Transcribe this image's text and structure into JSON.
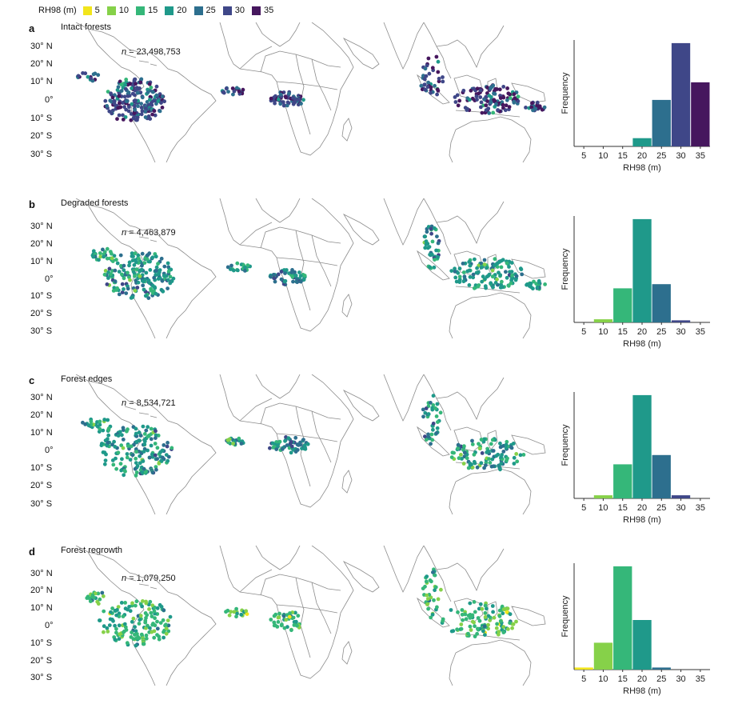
{
  "legend": {
    "title": "RH98 (m)",
    "items": [
      {
        "label": "5",
        "color": "#f2e51c"
      },
      {
        "label": "10",
        "color": "#86d149"
      },
      {
        "label": "15",
        "color": "#35b779"
      },
      {
        "label": "20",
        "color": "#1f998a"
      },
      {
        "label": "25",
        "color": "#2d6f8e"
      },
      {
        "label": "30",
        "color": "#3f4788"
      },
      {
        "label": "35",
        "color": "#46175e"
      }
    ]
  },
  "lat_labels": [
    "30° N",
    "20° N",
    "10° N",
    "0°",
    "10° S",
    "20° S",
    "30° S"
  ],
  "n_prefix": "n",
  "panels": [
    {
      "letter": "a",
      "title": "Intact forests",
      "n": "23,498,753"
    },
    {
      "letter": "b",
      "title": "Degraded forests",
      "n": "4,463,879"
    },
    {
      "letter": "c",
      "title": "Forest edges",
      "n": "8,534,721"
    },
    {
      "letter": "d",
      "title": "Forest regrowth",
      "n": "1,079,250"
    }
  ],
  "chart_data": [
    {
      "type": "bar",
      "panel": "a",
      "title": "Intact forests",
      "categories": [
        "5",
        "10",
        "15",
        "20",
        "25",
        "30",
        "35"
      ],
      "values": [
        0,
        0,
        0,
        0.08,
        0.45,
        1.0,
        0.62
      ],
      "xlabel": "RH98 (m)",
      "ylabel": "Frequency",
      "ylim": [
        0,
        1.03
      ]
    },
    {
      "type": "bar",
      "panel": "b",
      "title": "Degraded forests",
      "categories": [
        "5",
        "10",
        "15",
        "20",
        "25",
        "30",
        "35"
      ],
      "values": [
        0,
        0.03,
        0.33,
        1.0,
        0.37,
        0.02,
        0
      ],
      "xlabel": "RH98 (m)",
      "ylabel": "Frequency",
      "ylim": [
        0,
        1.03
      ]
    },
    {
      "type": "bar",
      "panel": "c",
      "title": "Forest edges",
      "categories": [
        "5",
        "10",
        "15",
        "20",
        "25",
        "30",
        "35"
      ],
      "values": [
        0,
        0.03,
        0.33,
        1.0,
        0.42,
        0.03,
        0
      ],
      "xlabel": "RH98 (m)",
      "ylabel": "Frequency",
      "ylim": [
        0,
        1.03
      ]
    },
    {
      "type": "bar",
      "panel": "d",
      "title": "Forest regrowth",
      "categories": [
        "5",
        "10",
        "15",
        "20",
        "25",
        "30",
        "35"
      ],
      "values": [
        0.02,
        0.26,
        1.0,
        0.48,
        0.02,
        0,
        0
      ],
      "xlabel": "RH98 (m)",
      "ylabel": "Frequency",
      "ylim": [
        0,
        1.03
      ]
    }
  ]
}
